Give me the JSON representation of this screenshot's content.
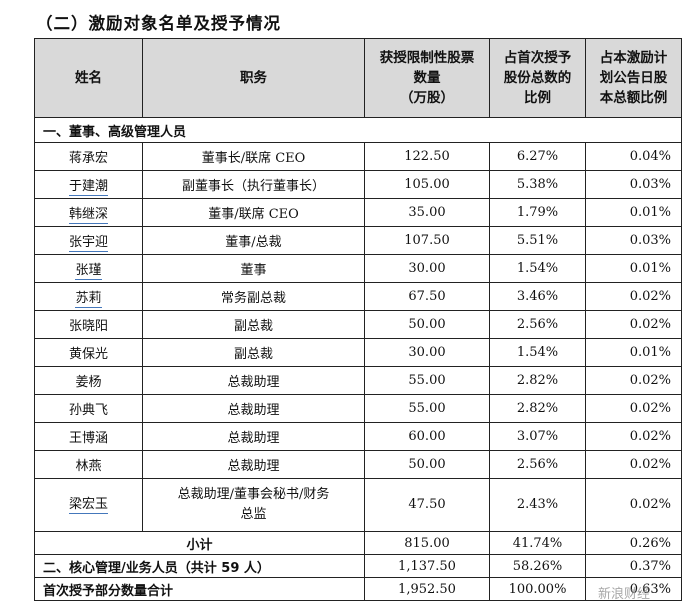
{
  "heading": "（二）激励对象名单及授予情况",
  "columns": [
    "姓名",
    "职务",
    "获授限制性股票数量（万股）",
    "占首次授予股份总数的比例",
    "占本激励计划公告日股本总额比例"
  ],
  "header_lines": {
    "c3": [
      "获授限制性股票",
      "数量",
      "（万股）"
    ],
    "c4": [
      "占首次授予",
      "股份总数的",
      "比例"
    ],
    "c5": [
      "占本激励计",
      "划公告日股",
      "本总额比例"
    ]
  },
  "section1_label": "一、董事、高级管理人员",
  "rows": [
    {
      "name": "蒋承宏",
      "role": "董事长/联席 CEO",
      "shares": "122.50",
      "pct_grant": "6.27%",
      "pct_total": "0.04%"
    },
    {
      "name": "于建潮",
      "role": "副董事长（执行董事长）",
      "shares": "105.00",
      "pct_grant": "5.38%",
      "pct_total": "0.03%"
    },
    {
      "name": "韩继深",
      "role": "董事/联席 CEO",
      "shares": "35.00",
      "pct_grant": "1.79%",
      "pct_total": "0.01%"
    },
    {
      "name": "张宇迎",
      "role": "董事/总裁",
      "shares": "107.50",
      "pct_grant": "5.51%",
      "pct_total": "0.03%"
    },
    {
      "name": "张瑾",
      "role": "董事",
      "shares": "30.00",
      "pct_grant": "1.54%",
      "pct_total": "0.01%"
    },
    {
      "name": "苏莉",
      "role": "常务副总裁",
      "shares": "67.50",
      "pct_grant": "3.46%",
      "pct_total": "0.02%"
    },
    {
      "name": "张晓阳",
      "role": "副总裁",
      "shares": "50.00",
      "pct_grant": "2.56%",
      "pct_total": "0.02%"
    },
    {
      "name": "黄保光",
      "role": "副总裁",
      "shares": "30.00",
      "pct_grant": "1.54%",
      "pct_total": "0.01%"
    },
    {
      "name": "姜杨",
      "role": "总裁助理",
      "shares": "55.00",
      "pct_grant": "2.82%",
      "pct_total": "0.02%"
    },
    {
      "name": "孙典飞",
      "role": "总裁助理",
      "shares": "55.00",
      "pct_grant": "2.82%",
      "pct_total": "0.02%"
    },
    {
      "name": "王博涵",
      "role": "总裁助理",
      "shares": "60.00",
      "pct_grant": "3.07%",
      "pct_total": "0.02%"
    },
    {
      "name": "林燕",
      "role": "总裁助理",
      "shares": "50.00",
      "pct_grant": "2.56%",
      "pct_total": "0.02%"
    },
    {
      "name": "梁宏玉",
      "role_lines": [
        "总裁助理/董事会秘书/财务",
        "总监"
      ],
      "shares": "47.50",
      "pct_grant": "2.43%",
      "pct_total": "0.02%"
    }
  ],
  "subtotal": {
    "label": "小计",
    "shares": "815.00",
    "pct_grant": "41.74%",
    "pct_total": "0.26%"
  },
  "core": {
    "label": "二、核心管理/业务人员（共计 59 人）",
    "shares": "1,137.50",
    "pct_grant": "58.26%",
    "pct_total": "0.37%"
  },
  "total": {
    "label": "首次授予部分数量合计",
    "shares": "1,952.50",
    "pct_grant": "100.00%",
    "pct_total": "0.63%"
  },
  "watermark": "新浪财经"
}
